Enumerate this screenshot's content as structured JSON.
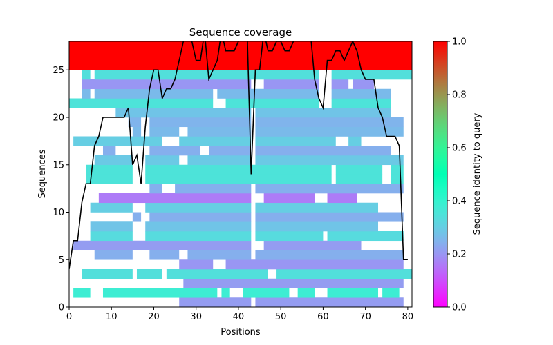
{
  "chart_data": {
    "type": "bar",
    "subtype": "horizontal-coverage-segments-with-line",
    "title": "Sequence coverage",
    "xlabel": "Positions",
    "ylabel": "Sequences",
    "xlim": [
      0,
      81
    ],
    "ylim": [
      0,
      28
    ],
    "xticks": [
      0,
      10,
      20,
      30,
      40,
      50,
      60,
      70,
      80
    ],
    "yticks": [
      0,
      5,
      10,
      15,
      20,
      25
    ],
    "grid": false,
    "colorbar": {
      "label": "Sequence identity to query",
      "colormap": "rainbow",
      "range": [
        0,
        1
      ],
      "ticks": [
        "0.0",
        "0.2",
        "0.4",
        "0.6",
        "0.8",
        "1.0"
      ]
    },
    "query_band": {
      "row_start": 25,
      "row_end": 28,
      "x_start": 0,
      "x_end": 81,
      "identity": 1.0
    },
    "rows": [
      {
        "row": 0,
        "identity": 0.21,
        "segments": [
          [
            26,
            43
          ],
          [
            44,
            79
          ]
        ]
      },
      {
        "row": 1,
        "identity": 0.38,
        "segments": [
          [
            1,
            5
          ],
          [
            8,
            35
          ],
          [
            36,
            38
          ],
          [
            41,
            52
          ],
          [
            54,
            58
          ],
          [
            61,
            73
          ],
          [
            74,
            78
          ]
        ]
      },
      {
        "row": 2,
        "identity": 0.21,
        "segments": [
          [
            27,
            79
          ]
        ]
      },
      {
        "row": 3,
        "identity": 0.34,
        "segments": [
          [
            3,
            15
          ],
          [
            16,
            22
          ],
          [
            23,
            47
          ],
          [
            49,
            81
          ]
        ]
      },
      {
        "row": 4,
        "identity": 0.2,
        "segments": [
          [
            26,
            34
          ],
          [
            37,
            79
          ]
        ]
      },
      {
        "row": 5,
        "identity": 0.24,
        "segments": [
          [
            6,
            15
          ],
          [
            19,
            26
          ],
          [
            28,
            43
          ],
          [
            44,
            79
          ]
        ]
      },
      {
        "row": 6,
        "identity": 0.21,
        "segments": [
          [
            1,
            43
          ],
          [
            46,
            69
          ]
        ]
      },
      {
        "row": 7,
        "identity": 0.33,
        "segments": [
          [
            5,
            15
          ],
          [
            18,
            43
          ],
          [
            44,
            60
          ],
          [
            61,
            79
          ]
        ]
      },
      {
        "row": 8,
        "identity": 0.28,
        "segments": [
          [
            5,
            15
          ],
          [
            18,
            43
          ],
          [
            44,
            73
          ]
        ]
      },
      {
        "row": 9,
        "identity": 0.24,
        "segments": [
          [
            15,
            17
          ],
          [
            19,
            43
          ],
          [
            44,
            79
          ]
        ]
      },
      {
        "row": 10,
        "identity": 0.3,
        "segments": [
          [
            5,
            15
          ],
          [
            18,
            43
          ],
          [
            44,
            73
          ]
        ]
      },
      {
        "row": 11,
        "identity": 0.16,
        "segments": [
          [
            7,
            43
          ],
          [
            46,
            58
          ],
          [
            61,
            68
          ]
        ]
      },
      {
        "row": 12,
        "identity": 0.24,
        "segments": [
          [
            19,
            22
          ],
          [
            25,
            43
          ],
          [
            44,
            79
          ]
        ]
      },
      {
        "row": 13,
        "identity": 0.35,
        "segments": [
          [
            4,
            15
          ],
          [
            18,
            62
          ],
          [
            63,
            74
          ],
          [
            76,
            79
          ]
        ]
      },
      {
        "row": 14,
        "identity": 0.35,
        "segments": [
          [
            4,
            15
          ],
          [
            18,
            62
          ],
          [
            63,
            74
          ],
          [
            76,
            79
          ]
        ]
      },
      {
        "row": 15,
        "identity": 0.29,
        "segments": [
          [
            6,
            15
          ],
          [
            18,
            26
          ],
          [
            28,
            43
          ],
          [
            44,
            79
          ]
        ]
      },
      {
        "row": 16,
        "identity": 0.24,
        "segments": [
          [
            8,
            11
          ],
          [
            19,
            31
          ],
          [
            33,
            43
          ],
          [
            44,
            76
          ]
        ]
      },
      {
        "row": 17,
        "identity": 0.3,
        "segments": [
          [
            1,
            22
          ],
          [
            26,
            43
          ],
          [
            44,
            63
          ],
          [
            66,
            69
          ]
        ]
      },
      {
        "row": 18,
        "identity": 0.26,
        "segments": [
          [
            15,
            17
          ],
          [
            19,
            26
          ],
          [
            28,
            43
          ],
          [
            44,
            79
          ]
        ]
      },
      {
        "row": 19,
        "identity": 0.25,
        "segments": [
          [
            14,
            17
          ],
          [
            19,
            43
          ],
          [
            44,
            79
          ]
        ]
      },
      {
        "row": 20,
        "identity": 0.28,
        "segments": [
          [
            11,
            43
          ],
          [
            44,
            76
          ]
        ]
      },
      {
        "row": 21,
        "identity": 0.35,
        "segments": [
          [
            0,
            34
          ],
          [
            37,
            59
          ],
          [
            62,
            76
          ]
        ]
      },
      {
        "row": 22,
        "identity": 0.26,
        "segments": [
          [
            3,
            5
          ],
          [
            6,
            34
          ],
          [
            35,
            59
          ],
          [
            62,
            76
          ]
        ]
      },
      {
        "row": 23,
        "identity": 0.2,
        "segments": [
          [
            3,
            43
          ],
          [
            46,
            59
          ],
          [
            62,
            66
          ],
          [
            67,
            72
          ]
        ]
      },
      {
        "row": 24,
        "identity": 0.34,
        "segments": [
          [
            3,
            5
          ],
          [
            6,
            59
          ],
          [
            62,
            81
          ]
        ]
      }
    ],
    "coverage_line": {
      "x": [
        0,
        1,
        2,
        3,
        4,
        5,
        6,
        7,
        8,
        9,
        10,
        11,
        12,
        13,
        14,
        15,
        16,
        17,
        18,
        19,
        20,
        21,
        22,
        23,
        24,
        25,
        26,
        27,
        28,
        29,
        30,
        31,
        32,
        33,
        34,
        35,
        36,
        37,
        38,
        39,
        40,
        41,
        42,
        43,
        44,
        45,
        46,
        47,
        48,
        49,
        50,
        51,
        52,
        53,
        54,
        55,
        56,
        57,
        58,
        59,
        60,
        61,
        62,
        63,
        64,
        65,
        66,
        67,
        68,
        69,
        70,
        71,
        72,
        73,
        74,
        75,
        76,
        77,
        78,
        79,
        80
      ],
      "y": [
        4,
        7,
        7,
        11,
        13,
        13,
        17,
        18,
        20,
        20,
        20,
        20,
        20,
        20,
        21,
        15,
        16,
        13,
        19,
        23,
        25,
        25,
        22,
        23,
        23,
        24,
        26,
        28,
        30,
        28,
        26,
        26,
        29,
        24,
        25,
        26,
        29,
        27,
        27,
        27,
        28,
        29,
        30,
        14,
        25,
        25,
        29,
        27,
        27,
        28,
        28,
        27,
        27,
        28,
        30,
        30,
        30,
        29,
        24,
        22,
        21,
        26,
        26,
        27,
        27,
        26,
        27,
        28,
        27,
        25,
        24,
        24,
        24,
        21,
        20,
        18,
        18,
        18,
        17,
        5,
        5
      ]
    }
  }
}
